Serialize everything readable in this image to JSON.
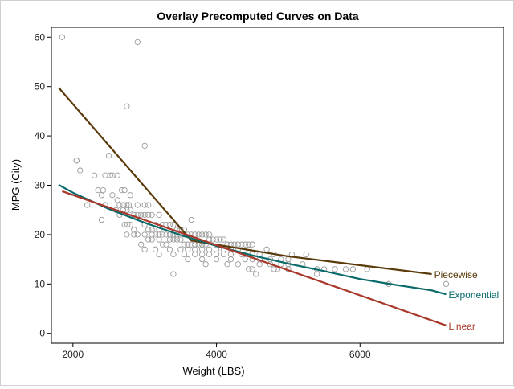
{
  "chart_data": {
    "type": "scatter",
    "title": "Overlay Precomputed Curves on Data",
    "xlabel": "Weight (LBS)",
    "ylabel": "MPG (City)",
    "xlim": [
      1700,
      8000
    ],
    "ylim": [
      -2,
      62
    ],
    "xticks": [
      2000,
      4000,
      6000
    ],
    "yticks": [
      0,
      10,
      20,
      30,
      40,
      50,
      60
    ],
    "grid": false,
    "legend": "none",
    "scatter": {
      "marker": "open-circle",
      "color": "#9a9a9a",
      "points": [
        [
          1850,
          60
        ],
        [
          2900,
          59
        ],
        [
          2750,
          46
        ],
        [
          3000,
          38
        ],
        [
          2500,
          36
        ],
        [
          2050,
          35
        ],
        [
          2050,
          35
        ],
        [
          2100,
          33
        ],
        [
          2300,
          32
        ],
        [
          2450,
          32
        ],
        [
          2520,
          32
        ],
        [
          2550,
          32
        ],
        [
          2620,
          32
        ],
        [
          2350,
          29
        ],
        [
          2420,
          29
        ],
        [
          2680,
          29
        ],
        [
          2720,
          29
        ],
        [
          2800,
          28
        ],
        [
          2400,
          28
        ],
        [
          2550,
          28
        ],
        [
          2200,
          26
        ],
        [
          2450,
          26
        ],
        [
          2620,
          27
        ],
        [
          2650,
          26
        ],
        [
          2700,
          26
        ],
        [
          2750,
          26
        ],
        [
          2780,
          26
        ],
        [
          2900,
          26
        ],
        [
          3000,
          26
        ],
        [
          3050,
          26
        ],
        [
          2400,
          23
        ],
        [
          2600,
          25
        ],
        [
          2700,
          25
        ],
        [
          2750,
          25
        ],
        [
          2800,
          25
        ],
        [
          2850,
          24
        ],
        [
          2900,
          24
        ],
        [
          2950,
          24
        ],
        [
          3000,
          24
        ],
        [
          3050,
          24
        ],
        [
          3100,
          24
        ],
        [
          3200,
          24
        ],
        [
          2650,
          24
        ],
        [
          2720,
          22
        ],
        [
          2760,
          22
        ],
        [
          2800,
          22
        ],
        [
          2850,
          21
        ],
        [
          3000,
          22
        ],
        [
          3050,
          21
        ],
        [
          3100,
          21
        ],
        [
          3150,
          22
        ],
        [
          3200,
          21
        ],
        [
          3250,
          22
        ],
        [
          3300,
          22
        ],
        [
          3350,
          22
        ],
        [
          3400,
          22
        ],
        [
          3450,
          21
        ],
        [
          3500,
          21
        ],
        [
          3550,
          21
        ],
        [
          3650,
          23
        ],
        [
          2750,
          20
        ],
        [
          2850,
          20
        ],
        [
          2900,
          20
        ],
        [
          3000,
          20
        ],
        [
          3100,
          20
        ],
        [
          3150,
          20
        ],
        [
          3200,
          20
        ],
        [
          3250,
          20
        ],
        [
          3300,
          20
        ],
        [
          3350,
          20
        ],
        [
          3400,
          20
        ],
        [
          3450,
          20
        ],
        [
          3500,
          20
        ],
        [
          3550,
          20
        ],
        [
          3600,
          20
        ],
        [
          3650,
          20
        ],
        [
          3700,
          20
        ],
        [
          3750,
          20
        ],
        [
          3800,
          20
        ],
        [
          3850,
          20
        ],
        [
          3900,
          20
        ],
        [
          2950,
          18
        ],
        [
          3050,
          19
        ],
        [
          3100,
          19
        ],
        [
          3200,
          19
        ],
        [
          3250,
          18
        ],
        [
          3300,
          18
        ],
        [
          3350,
          19
        ],
        [
          3400,
          19
        ],
        [
          3450,
          19
        ],
        [
          3500,
          19
        ],
        [
          3550,
          18
        ],
        [
          3600,
          18
        ],
        [
          3650,
          18
        ],
        [
          3700,
          18
        ],
        [
          3750,
          18
        ],
        [
          3800,
          18
        ],
        [
          3850,
          18
        ],
        [
          3900,
          19
        ],
        [
          3950,
          19
        ],
        [
          4000,
          19
        ],
        [
          4050,
          19
        ],
        [
          4100,
          19
        ],
        [
          4150,
          18
        ],
        [
          4200,
          18
        ],
        [
          4250,
          18
        ],
        [
          4300,
          18
        ],
        [
          4350,
          18
        ],
        [
          4400,
          18
        ],
        [
          4450,
          18
        ],
        [
          4500,
          18
        ],
        [
          3000,
          17
        ],
        [
          3150,
          17
        ],
        [
          3350,
          17
        ],
        [
          3500,
          17
        ],
        [
          3600,
          17
        ],
        [
          3700,
          17
        ],
        [
          3800,
          17
        ],
        [
          3900,
          17
        ],
        [
          4000,
          17
        ],
        [
          4100,
          17
        ],
        [
          4200,
          17
        ],
        [
          4300,
          17
        ],
        [
          4450,
          17
        ],
        [
          3200,
          16
        ],
        [
          3400,
          16
        ],
        [
          3550,
          16
        ],
        [
          3700,
          16
        ],
        [
          3800,
          16
        ],
        [
          3900,
          16
        ],
        [
          4000,
          16
        ],
        [
          4100,
          16
        ],
        [
          4200,
          16
        ],
        [
          4350,
          16
        ],
        [
          4500,
          16
        ],
        [
          4600,
          16
        ],
        [
          4700,
          17
        ],
        [
          3600,
          15
        ],
        [
          3800,
          15
        ],
        [
          4000,
          15
        ],
        [
          4200,
          15
        ],
        [
          4400,
          15
        ],
        [
          4500,
          15
        ],
        [
          4600,
          15
        ],
        [
          4750,
          15
        ],
        [
          4800,
          16
        ],
        [
          4900,
          15
        ],
        [
          5000,
          15
        ],
        [
          5050,
          16
        ],
        [
          3850,
          14
        ],
        [
          4150,
          14
        ],
        [
          4300,
          14
        ],
        [
          4500,
          13
        ],
        [
          4600,
          14
        ],
        [
          4750,
          14
        ],
        [
          4850,
          13
        ],
        [
          4900,
          14
        ],
        [
          5000,
          14
        ],
        [
          5200,
          14
        ],
        [
          5250,
          16
        ],
        [
          4450,
          13
        ],
        [
          4550,
          12
        ],
        [
          4800,
          13
        ],
        [
          5000,
          13
        ],
        [
          5400,
          13
        ],
        [
          5500,
          13
        ],
        [
          5650,
          13
        ],
        [
          5400,
          12
        ],
        [
          5800,
          13
        ],
        [
          5900,
          13
        ],
        [
          6100,
          13
        ],
        [
          6400,
          10
        ],
        [
          7200,
          10
        ],
        [
          3400,
          12
        ]
      ]
    },
    "series": [
      {
        "name": "Piecewise",
        "color": "#5a3a0a",
        "x": [
          1800,
          3650,
          5000,
          7000
        ],
        "y": [
          49.8,
          18.8,
          15.6,
          12
        ]
      },
      {
        "name": "Exponential",
        "color": "#0a6a6a",
        "x": [
          1800,
          2000,
          2500,
          3000,
          3500,
          4000,
          4500,
          5000,
          5500,
          6000,
          6500,
          7000,
          7200
        ],
        "y": [
          30.1,
          28.5,
          25.2,
          22.4,
          19.9,
          17.7,
          15.8,
          14.1,
          12.6,
          11.0,
          9.8,
          8.7,
          7.9
        ]
      },
      {
        "name": "Linear",
        "color": "#a8382a",
        "x": [
          1850,
          7200
        ],
        "y": [
          28.8,
          1.6
        ]
      }
    ]
  }
}
